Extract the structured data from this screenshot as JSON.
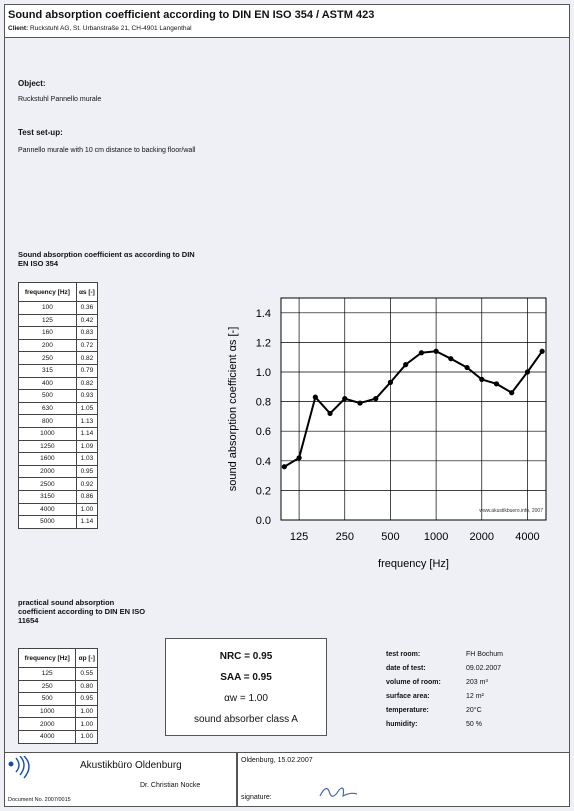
{
  "header": {
    "title": "Sound absorption coefficient according to DIN EN ISO 354 / ASTM 423",
    "client_label": "Client:",
    "client": "Ruckstuhl AG, St. Urbanstraße 21, CH-4901 Langenthal"
  },
  "object": {
    "label": "Object:",
    "text": "Ruckstuhl Pannello murale"
  },
  "setup": {
    "label": "Test set-up:",
    "text": "Pannello murale with 10 cm distance to backing floor/wall"
  },
  "table1": {
    "title": "Sound absorption coefficient αs according to DIN EN ISO 354",
    "headers": [
      "frequency [Hz]",
      "αs [-]"
    ],
    "rows": [
      [
        "100",
        "0.36"
      ],
      [
        "125",
        "0.42"
      ],
      [
        "160",
        "0.83"
      ],
      [
        "200",
        "0.72"
      ],
      [
        "250",
        "0.82"
      ],
      [
        "315",
        "0.79"
      ],
      [
        "400",
        "0.82"
      ],
      [
        "500",
        "0.93"
      ],
      [
        "630",
        "1.05"
      ],
      [
        "800",
        "1.13"
      ],
      [
        "1000",
        "1.14"
      ],
      [
        "1250",
        "1.09"
      ],
      [
        "1600",
        "1.03"
      ],
      [
        "2000",
        "0.95"
      ],
      [
        "2500",
        "0.92"
      ],
      [
        "3150",
        "0.86"
      ],
      [
        "4000",
        "1.00"
      ],
      [
        "5000",
        "1.14"
      ]
    ]
  },
  "table2": {
    "title": "practical sound absorption coefficient according to DIN EN ISO 11654",
    "headers": [
      "frequency [Hz]",
      "αp [-]"
    ],
    "rows": [
      [
        "125",
        "0.55"
      ],
      [
        "250",
        "0.80"
      ],
      [
        "500",
        "0.95"
      ],
      [
        "1000",
        "1.00"
      ],
      [
        "2000",
        "1.00"
      ],
      [
        "4000",
        "1.00"
      ]
    ]
  },
  "ratings": [
    "NRC = 0.95",
    "SAA = 0.95",
    "αw = 1.00",
    "sound absorber class A"
  ],
  "info": [
    [
      "test room:",
      "FH Bochum"
    ],
    [
      "date of test:",
      "09.02.2007"
    ],
    [
      "volume of room:",
      "203 m³"
    ],
    [
      "surface area:",
      "12 m²"
    ],
    [
      "temperature:",
      "20°C"
    ],
    [
      "humidity:",
      "50 %"
    ]
  ],
  "footer": {
    "company": "Akustikbüro Oldenburg",
    "person": "Dr. Christian Nocke",
    "document": "Document No. 2007/0015",
    "place_date": "Oldenburg, 15.02.2007",
    "signature": "signature:"
  },
  "chart_data": {
    "type": "line",
    "x_label": "frequency [Hz]",
    "y_label": "sound absorption coefficient αs [-]",
    "watermark": "www.akustikbuero.info, 2007",
    "x": [
      100,
      125,
      160,
      200,
      250,
      315,
      400,
      500,
      630,
      800,
      1000,
      1250,
      1600,
      2000,
      2500,
      3150,
      4000,
      5000
    ],
    "series": [
      {
        "color": "#000000",
        "values": [
          0.36,
          0.42,
          0.83,
          0.72,
          0.82,
          0.79,
          0.82,
          0.93,
          1.05,
          1.13,
          1.14,
          1.09,
          1.03,
          0.95,
          0.92,
          0.86,
          1.0,
          1.14
        ]
      }
    ],
    "xscale": "log",
    "xlim": [
      95,
      5300
    ],
    "xticks": [
      125,
      250,
      500,
      1000,
      2000,
      4000
    ],
    "ylim": [
      0,
      1.5
    ],
    "yticks": [
      {
        "value": 0,
        "label": "0.0"
      },
      0.2,
      0.4,
      0.6,
      0.8,
      {
        "value": 1,
        "label": "1.0"
      },
      1.2,
      1.4
    ],
    "grid": true
  }
}
